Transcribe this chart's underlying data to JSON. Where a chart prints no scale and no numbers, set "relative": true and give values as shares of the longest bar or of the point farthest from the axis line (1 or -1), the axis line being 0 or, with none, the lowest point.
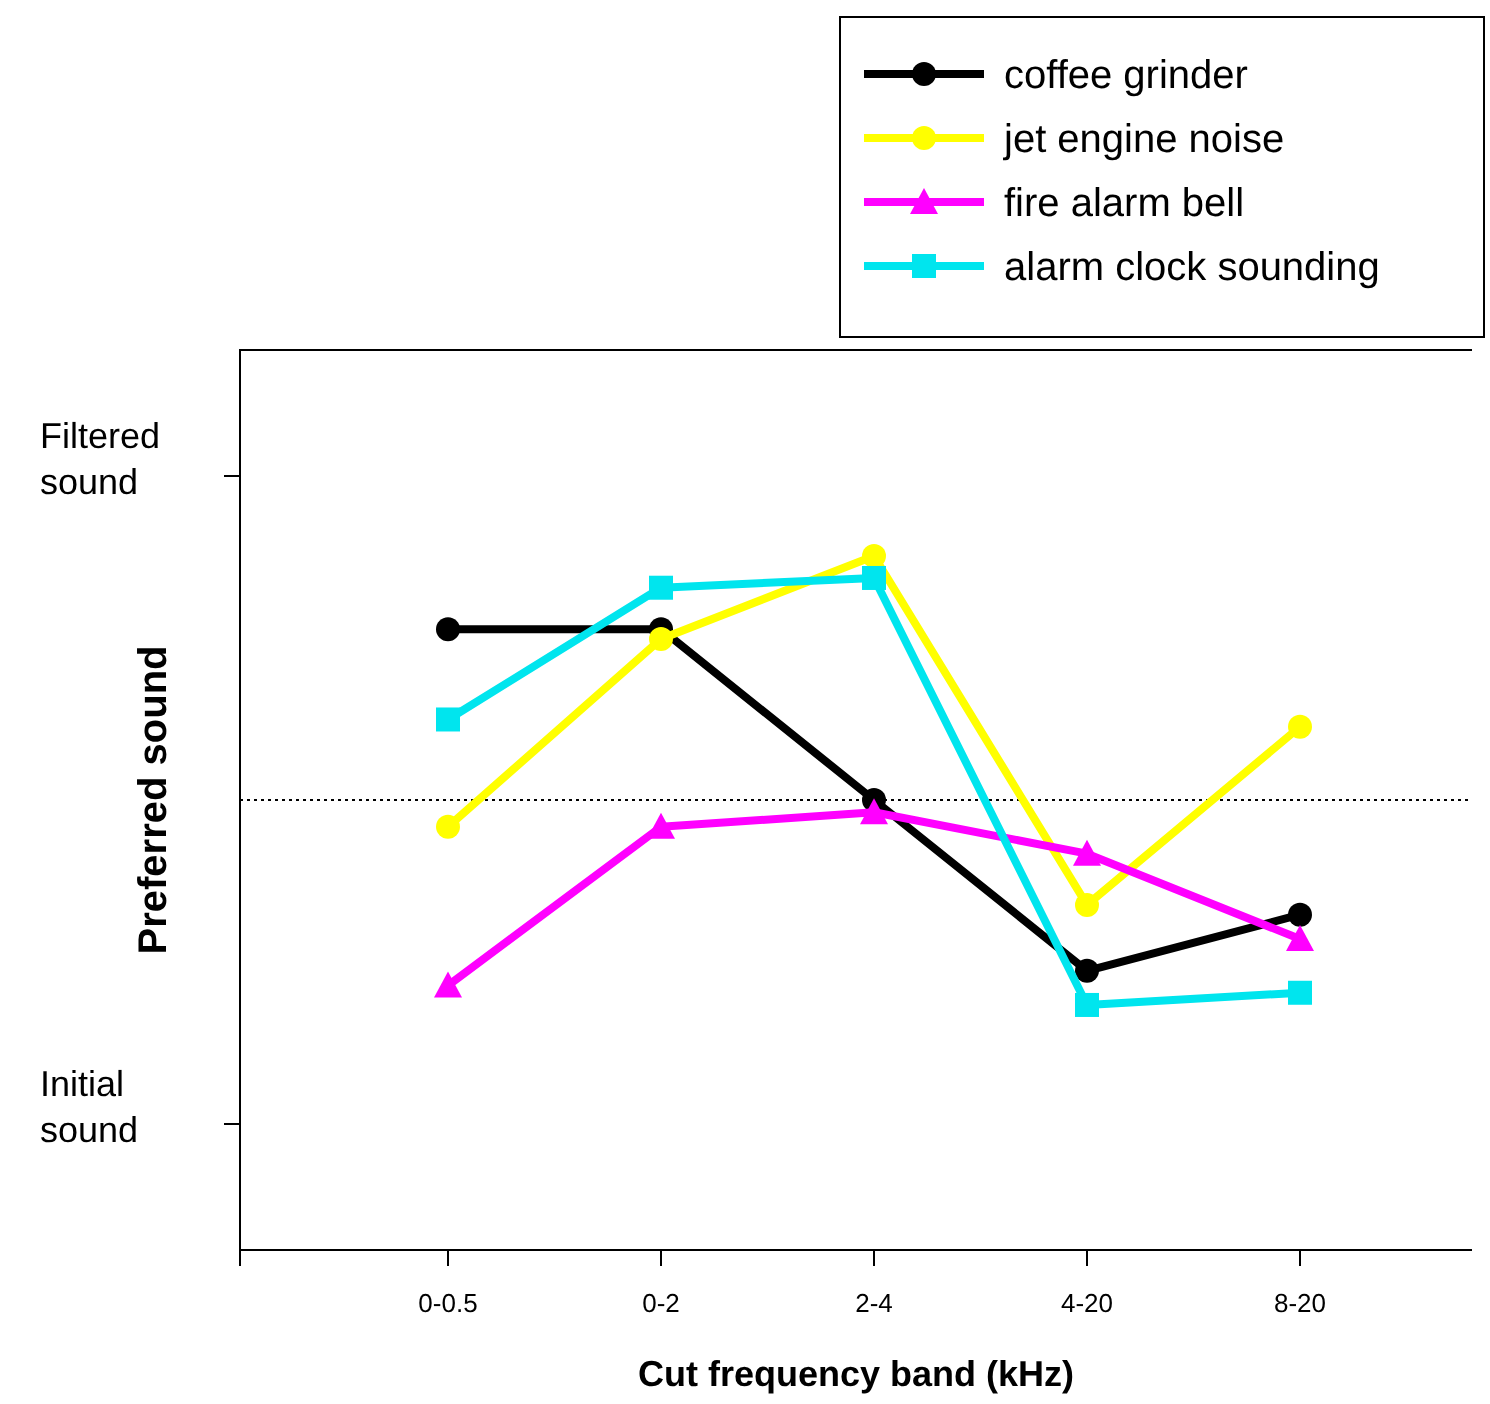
{
  "chart_data": {
    "type": "line",
    "xlabel": "Cut frequency band (kHz)",
    "ylabel": "Preferred sound",
    "relative": true,
    "categories": [
      "0-0.5",
      "0-2",
      "2-4",
      "4-20",
      "8-20"
    ],
    "series": [
      {
        "name": "coffee grinder",
        "color": "#000000",
        "marker": "circle",
        "values": [
          0.7,
          0.7,
          0,
          -0.7,
          -0.47
        ]
      },
      {
        "name": "jet engine noise",
        "color": "#ffff00",
        "marker": "circle",
        "values": [
          -0.11,
          0.66,
          1,
          -0.43,
          0.3
        ]
      },
      {
        "name": "fire alarm bell",
        "color": "#ff00ff",
        "marker": "triangle",
        "values": [
          -0.76,
          -0.11,
          -0.05,
          -0.22,
          -0.57
        ]
      },
      {
        "name": "alarm clock sounding",
        "color": "#00e5ee",
        "marker": "square",
        "values": [
          0.33,
          0.87,
          0.91,
          -0.84,
          -0.79
        ]
      }
    ],
    "annotations": [
      "Filtered sound",
      "Initial sound"
    ],
    "ref_lines": [
      {
        "axis": "y",
        "value": 0,
        "label": null,
        "color": "#000000",
        "line_style": "dotted"
      }
    ],
    "legend": "top right",
    "grid": false
  }
}
